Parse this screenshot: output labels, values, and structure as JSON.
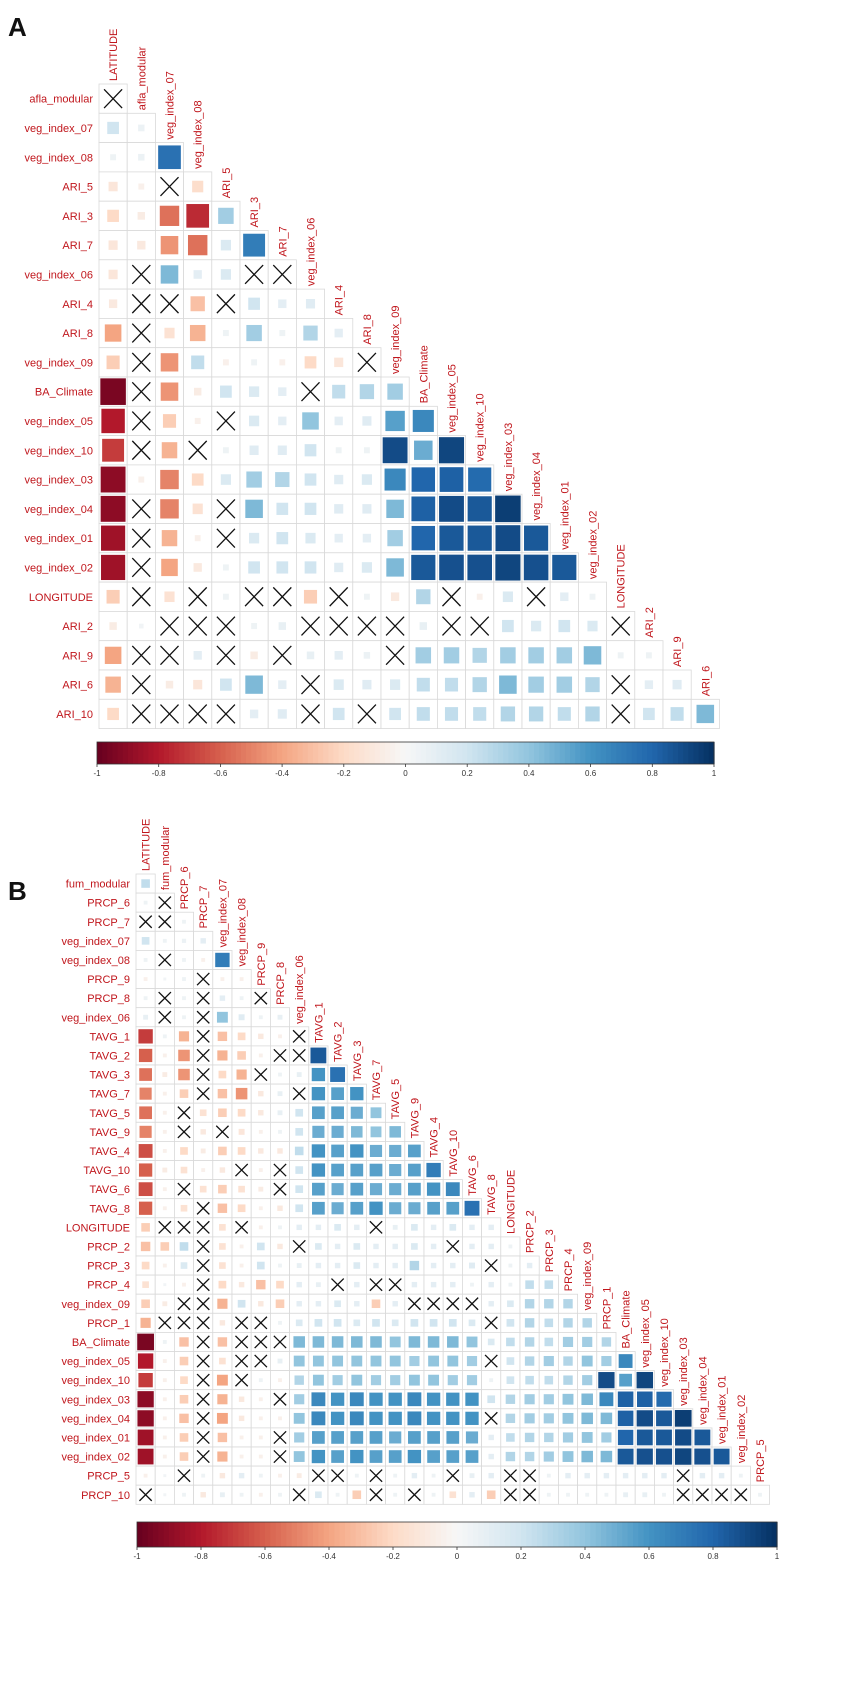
{
  "chart_data": [
    {
      "panel": "A",
      "type": "heatmap",
      "title": "",
      "variables": [
        "LATITUDE",
        "afla_modular",
        "veg_index_07",
        "veg_index_08",
        "ARI_5",
        "ARI_3",
        "ARI_7",
        "veg_index_06",
        "ARI_4",
        "ARI_8",
        "veg_index_09",
        "BA_Climate",
        "veg_index_05",
        "veg_index_10",
        "veg_index_03",
        "veg_index_04",
        "veg_index_01",
        "veg_index_02",
        "LONGITUDE",
        "ARI_2",
        "ARI_9",
        "ARI_6",
        "ARI_10"
      ],
      "diagonal_labels": [
        "LATITUDE",
        "afla_modular",
        "veg_index_07",
        "veg_index_08",
        "ARI_5",
        "ARI_3",
        "ARI_7",
        "veg_index_06",
        "ARI_4",
        "ARI_8",
        "veg_index_09",
        "BA_Climate",
        "veg_index_05",
        "veg_index_10",
        "veg_index_03",
        "veg_index_04",
        "veg_index_01",
        "veg_index_02",
        "LONGITUDE",
        "ARI_2",
        "ARI_9",
        "ARI_6"
      ],
      "row_labels": [
        "afla_modular",
        "veg_index_07",
        "veg_index_08",
        "ARI_5",
        "ARI_3",
        "ARI_7",
        "veg_index_06",
        "ARI_4",
        "ARI_8",
        "veg_index_09",
        "BA_Climate",
        "veg_index_05",
        "veg_index_10",
        "veg_index_03",
        "veg_index_04",
        "veg_index_01",
        "veg_index_02",
        "LONGITUDE",
        "ARI_2",
        "ARI_9",
        "ARI_6",
        "ARI_10"
      ],
      "colorbar_ticks": [
        "-1",
        "-0.8",
        "-0.6",
        "-0.4",
        "-0.2",
        "0",
        "0.2",
        "0.4",
        "0.6",
        "0.8",
        "1"
      ],
      "colorbar_range": [
        -1,
        1
      ],
      "legend_position": "bottom",
      "x_marker_note": "X marks non-significant correlations",
      "lower_triangle": [
        [
          "X"
        ],
        [
          0.2,
          0.06
        ],
        [
          0.05,
          0.06,
          0.75
        ],
        [
          -0.12,
          -0.05,
          "X",
          -0.18
        ],
        [
          -0.2,
          -0.08,
          -0.55,
          -0.75,
          0.35
        ],
        [
          -0.12,
          -0.1,
          -0.45,
          -0.55,
          0.15,
          0.7
        ],
        [
          -0.12,
          "X",
          0.45,
          0.1,
          0.15,
          "X",
          "X"
        ],
        [
          -0.1,
          "X",
          "X",
          -0.3,
          "X",
          0.2,
          0.1,
          0.12
        ],
        [
          -0.4,
          "X",
          -0.15,
          -0.35,
          0.05,
          0.35,
          0.05,
          0.3,
          0.1
        ],
        [
          -0.25,
          "X",
          -0.45,
          0.25,
          -0.05,
          0.05,
          -0.05,
          -0.2,
          -0.12,
          "X"
        ],
        [
          -0.95,
          "X",
          -0.45,
          -0.08,
          0.2,
          0.15,
          0.1,
          "X",
          0.25,
          0.3,
          0.35
        ],
        [
          -0.8,
          "X",
          -0.25,
          -0.05,
          "X",
          0.15,
          0.1,
          0.4,
          0.1,
          0.12,
          0.55,
          0.65
        ],
        [
          -0.7,
          "X",
          -0.35,
          "X",
          0.05,
          0.12,
          0.12,
          0.2,
          0.05,
          0.05,
          0.9,
          0.5,
          0.92
        ],
        [
          -0.9,
          -0.05,
          -0.5,
          -0.2,
          0.15,
          0.35,
          0.3,
          0.2,
          0.12,
          0.15,
          0.65,
          0.8,
          0.82,
          0.78
        ],
        [
          -0.9,
          "X",
          -0.5,
          -0.15,
          "X",
          0.45,
          0.2,
          0.2,
          0.12,
          0.12,
          0.45,
          0.82,
          0.9,
          0.85,
          0.95
        ],
        [
          -0.85,
          "X",
          -0.35,
          -0.05,
          "X",
          0.15,
          0.2,
          0.15,
          0.1,
          0.1,
          0.35,
          0.8,
          0.85,
          0.85,
          0.9,
          0.85
        ],
        [
          -0.85,
          "X",
          -0.4,
          -0.1,
          0.05,
          0.2,
          0.2,
          0.2,
          0.12,
          0.15,
          0.45,
          0.85,
          0.88,
          0.88,
          0.92,
          0.88,
          0.85
        ],
        [
          -0.25,
          "X",
          -0.15,
          "X",
          0.05,
          "X",
          "X",
          -0.25,
          "X",
          0.05,
          -0.1,
          0.3,
          "X",
          -0.05,
          0.15,
          "X",
          0.1,
          0.05
        ],
        [
          -0.08,
          0.03,
          "X",
          "X",
          "X",
          0.05,
          0.08,
          "X",
          "X",
          "X",
          "X",
          0.08,
          "X",
          "X",
          0.2,
          0.15,
          0.2,
          0.15,
          "X"
        ],
        [
          -0.4,
          "X",
          "X",
          0.1,
          "X",
          -0.08,
          "X",
          0.08,
          0.1,
          0.06,
          "X",
          0.35,
          0.35,
          0.3,
          0.35,
          0.35,
          0.35,
          0.45,
          0.05,
          0.05
        ],
        [
          -0.35,
          "X",
          -0.08,
          -0.12,
          0.2,
          0.45,
          0.1,
          "X",
          0.15,
          0.12,
          0.15,
          0.25,
          0.25,
          0.3,
          0.45,
          0.35,
          0.35,
          0.3,
          "X",
          0.1,
          0.12
        ],
        [
          -0.2,
          "X",
          "X",
          "X",
          "X",
          0.1,
          0.12,
          "X",
          0.2,
          "X",
          0.2,
          0.25,
          0.25,
          0.25,
          0.3,
          0.3,
          0.25,
          0.3,
          "X",
          0.2,
          0.25,
          0.45
        ]
      ]
    },
    {
      "panel": "B",
      "type": "heatmap",
      "title": "",
      "variables": [
        "LATITUDE",
        "fum_modular",
        "PRCP_6",
        "PRCP_7",
        "veg_index_07",
        "veg_index_08",
        "PRCP_9",
        "PRCP_8",
        "veg_index_06",
        "TAVG_1",
        "TAVG_2",
        "TAVG_3",
        "TAVG_7",
        "TAVG_5",
        "TAVG_9",
        "TAVG_4",
        "TAVG_10",
        "TAVG_6",
        "TAVG_8",
        "LONGITUDE",
        "PRCP_2",
        "PRCP_3",
        "PRCP_4",
        "veg_index_09",
        "PRCP_1",
        "BA_Climate",
        "veg_index_05",
        "veg_index_10",
        "veg_index_03",
        "veg_index_04",
        "veg_index_01",
        "veg_index_02",
        "PRCP_5",
        "PRCP_10"
      ],
      "diagonal_labels": [
        "LATITUDE",
        "fum_modular",
        "PRCP_6",
        "PRCP_7",
        "veg_index_07",
        "veg_index_08",
        "PRCP_9",
        "PRCP_8",
        "veg_index_06",
        "TAVG_1",
        "TAVG_2",
        "TAVG_3",
        "TAVG_7",
        "TAVG_5",
        "TAVG_9",
        "TAVG_4",
        "TAVG_10",
        "TAVG_6",
        "TAVG_8",
        "LONGITUDE",
        "PRCP_2",
        "PRCP_3",
        "PRCP_4",
        "veg_index_09",
        "PRCP_1",
        "BA_Climate",
        "veg_index_05",
        "veg_index_10",
        "veg_index_03",
        "veg_index_04",
        "veg_index_01",
        "veg_index_02",
        "PRCP_5"
      ],
      "row_labels": [
        "fum_modular",
        "PRCP_6",
        "PRCP_7",
        "veg_index_07",
        "veg_index_08",
        "PRCP_9",
        "PRCP_8",
        "veg_index_06",
        "TAVG_1",
        "TAVG_2",
        "TAVG_3",
        "TAVG_7",
        "TAVG_5",
        "TAVG_9",
        "TAVG_4",
        "TAVG_10",
        "TAVG_6",
        "TAVG_8",
        "LONGITUDE",
        "PRCP_2",
        "PRCP_3",
        "PRCP_4",
        "veg_index_09",
        "PRCP_1",
        "BA_Climate",
        "veg_index_05",
        "veg_index_10",
        "veg_index_03",
        "veg_index_04",
        "veg_index_01",
        "veg_index_02",
        "PRCP_5",
        "PRCP_10"
      ],
      "colorbar_ticks": [
        "-1",
        "-0.8",
        "-0.6",
        "-0.4",
        "-0.2",
        "0",
        "0.2",
        "0.4",
        "0.6",
        "0.8",
        "1"
      ],
      "colorbar_range": [
        -1,
        1
      ],
      "legend_position": "bottom",
      "x_marker_note": "X marks non-significant correlations",
      "lower_triangle": [
        [
          0.25
        ],
        [
          0.05,
          "X"
        ],
        [
          "X",
          "X",
          0.05
        ],
        [
          0.2,
          0.05,
          0.06,
          0.1
        ],
        [
          0.05,
          "X",
          0.05,
          -0.05,
          0.7
        ],
        [
          -0.05,
          0.03,
          0.05,
          "X",
          -0.05,
          -0.05
        ],
        [
          0.05,
          "X",
          0.05,
          "X",
          0.1,
          0.05,
          "X"
        ],
        [
          0.08,
          "X",
          0.05,
          "X",
          0.4,
          0.12,
          0.05,
          0.08
        ],
        [
          -0.7,
          0.05,
          -0.35,
          "X",
          -0.3,
          -0.2,
          -0.1,
          -0.05,
          "X"
        ],
        [
          -0.6,
          -0.05,
          -0.45,
          "X",
          -0.35,
          -0.25,
          -0.05,
          "X",
          "X",
          0.85
        ],
        [
          -0.55,
          -0.08,
          -0.45,
          "X",
          -0.2,
          -0.35,
          "X",
          0.05,
          0.08,
          0.6,
          0.75
        ],
        [
          -0.5,
          -0.05,
          -0.25,
          "X",
          -0.3,
          -0.45,
          -0.1,
          0.08,
          "X",
          0.6,
          0.55,
          0.6
        ],
        [
          -0.55,
          -0.05,
          "X",
          -0.15,
          -0.25,
          -0.2,
          -0.1,
          0.08,
          0.2,
          0.55,
          0.55,
          0.5,
          0.4
        ],
        [
          -0.5,
          -0.05,
          "X",
          -0.1,
          "X",
          -0.12,
          -0.05,
          0.05,
          0.2,
          0.5,
          0.5,
          0.45,
          0.4,
          0.45
        ],
        [
          -0.65,
          -0.05,
          -0.2,
          -0.08,
          -0.25,
          -0.2,
          -0.1,
          -0.1,
          0.25,
          0.6,
          0.55,
          0.6,
          0.5,
          0.5,
          0.55
        ],
        [
          -0.6,
          -0.08,
          -0.15,
          -0.05,
          -0.1,
          "X",
          -0.05,
          "X",
          0.2,
          0.6,
          0.55,
          0.55,
          0.55,
          0.5,
          0.55,
          0.7
        ],
        [
          -0.65,
          -0.05,
          "X",
          -0.15,
          -0.25,
          -0.15,
          -0.08,
          "X",
          0.2,
          0.55,
          0.5,
          0.55,
          0.5,
          0.5,
          0.55,
          0.6,
          0.65
        ],
        [
          -0.6,
          -0.05,
          -0.15,
          "X",
          -0.3,
          -0.2,
          -0.05,
          -0.1,
          0.2,
          0.55,
          0.5,
          0.55,
          0.6,
          0.5,
          0.5,
          0.55,
          0.55,
          0.75
        ],
        [
          -0.25,
          "X",
          "X",
          "X",
          -0.15,
          "X",
          -0.05,
          0.05,
          0.1,
          0.1,
          0.15,
          0.1,
          "X",
          0.08,
          0.15,
          0.1,
          0.15,
          0.1,
          0.1
        ],
        [
          -0.3,
          -0.25,
          0.25,
          "X",
          -0.15,
          -0.05,
          0.2,
          -0.1,
          "X",
          0.15,
          0.1,
          0.15,
          0.1,
          0.1,
          0.15,
          0.1,
          "X",
          0.1,
          0.1,
          0.05
        ],
        [
          -0.2,
          -0.05,
          0.15,
          "X",
          -0.15,
          -0.05,
          0.2,
          0.05,
          0.08,
          0.1,
          0.1,
          0.15,
          0.1,
          0.1,
          0.3,
          0.1,
          0.1,
          0.12,
          "X",
          0.05,
          0.1
        ],
        [
          -0.15,
          0.03,
          -0.05,
          "X",
          -0.2,
          -0.1,
          -0.3,
          -0.2,
          0.1,
          0.08,
          "X",
          0.1,
          "X",
          "X",
          0.1,
          0.1,
          0.1,
          0.05,
          0.1,
          0.05,
          0.25,
          0.25
        ],
        [
          -0.25,
          -0.08,
          "X",
          "X",
          -0.35,
          0.2,
          -0.1,
          -0.25,
          0.1,
          0.1,
          0.15,
          0.1,
          -0.25,
          0.1,
          "X",
          "X",
          "X",
          "X",
          0.1,
          0.15,
          0.3,
          0.3,
          0.3
        ],
        [
          -0.35,
          "X",
          "X",
          "X",
          -0.1,
          "X",
          "X",
          0.05,
          0.15,
          0.2,
          0.2,
          0.15,
          0.2,
          0.15,
          0.2,
          0.2,
          0.2,
          0.15,
          "X",
          0.2,
          0.3,
          0.25,
          0.3,
          0.3
        ],
        [
          -0.95,
          0.05,
          -0.3,
          "X",
          -0.3,
          "X",
          "X",
          "X",
          0.45,
          0.45,
          0.45,
          0.45,
          0.45,
          0.4,
          0.45,
          0.45,
          0.45,
          0.4,
          0.15,
          0.25,
          0.3,
          0.25,
          0.35,
          0.35,
          0.3
        ],
        [
          -0.8,
          -0.05,
          -0.25,
          "X",
          -0.15,
          "X",
          "X",
          0.08,
          0.4,
          0.4,
          0.4,
          0.4,
          0.4,
          0.4,
          0.35,
          0.4,
          0.4,
          0.35,
          "X",
          0.2,
          0.3,
          0.35,
          0.3,
          0.4,
          0.35,
          0.65
        ],
        [
          -0.7,
          -0.05,
          -0.2,
          "X",
          -0.4,
          "X",
          0.05,
          -0.05,
          0.3,
          0.4,
          0.35,
          0.4,
          0.35,
          0.35,
          0.4,
          0.4,
          0.35,
          0.35,
          0.05,
          0.2,
          0.25,
          0.25,
          0.3,
          0.35,
          0.9,
          0.55,
          0.92
        ],
        [
          -0.9,
          -0.05,
          -0.25,
          "X",
          -0.35,
          -0.1,
          -0.05,
          "X",
          0.35,
          0.65,
          0.6,
          0.65,
          0.6,
          0.6,
          0.65,
          0.6,
          0.6,
          0.6,
          0.2,
          0.3,
          0.35,
          0.35,
          0.4,
          0.45,
          0.65,
          0.82,
          0.82,
          0.78
        ],
        [
          -0.9,
          -0.05,
          -0.3,
          "X",
          -0.4,
          -0.1,
          -0.05,
          -0.05,
          0.4,
          0.65,
          0.6,
          0.65,
          0.6,
          0.6,
          0.65,
          0.6,
          0.6,
          0.6,
          "X",
          0.3,
          0.35,
          0.35,
          0.4,
          0.45,
          0.45,
          0.82,
          0.9,
          0.85,
          0.95
        ],
        [
          -0.85,
          -0.05,
          -0.25,
          "X",
          -0.3,
          -0.05,
          -0.05,
          "X",
          0.35,
          0.55,
          0.55,
          0.55,
          0.55,
          0.5,
          0.55,
          0.55,
          0.55,
          0.5,
          0.1,
          0.25,
          0.3,
          0.3,
          0.35,
          0.4,
          0.35,
          0.8,
          0.85,
          0.85,
          0.9,
          0.85
        ],
        [
          -0.85,
          -0.05,
          -0.25,
          "X",
          -0.35,
          -0.05,
          -0.05,
          "X",
          0.4,
          0.6,
          0.55,
          0.6,
          0.55,
          0.55,
          0.6,
          0.55,
          0.55,
          0.55,
          0.1,
          0.3,
          0.3,
          0.35,
          0.4,
          0.45,
          0.45,
          0.85,
          0.88,
          0.88,
          0.92,
          0.88,
          0.85
        ],
        [
          -0.05,
          0.03,
          "X",
          0.05,
          -0.1,
          0.1,
          0.05,
          -0.05,
          -0.08,
          "X",
          "X",
          0.05,
          "X",
          0.05,
          0.1,
          0.05,
          "X",
          0.08,
          0.1,
          "X",
          "X",
          0.05,
          0.1,
          0.1,
          0.1,
          0.1,
          0.1,
          0.1,
          "X",
          0.1,
          0.1,
          0.05
        ],
        [
          "X",
          0.03,
          0.05,
          -0.1,
          0.08,
          0.05,
          -0.05,
          0.05,
          "X",
          0.15,
          0.05,
          -0.25,
          "X",
          0.05,
          "X",
          0.05,
          -0.15,
          0.1,
          -0.25,
          "X",
          "X",
          0.05,
          0.05,
          0.05,
          0.05,
          0.08,
          0.08,
          0.05,
          "X",
          "X",
          "X",
          "X",
          0.05
        ]
      ]
    }
  ]
}
